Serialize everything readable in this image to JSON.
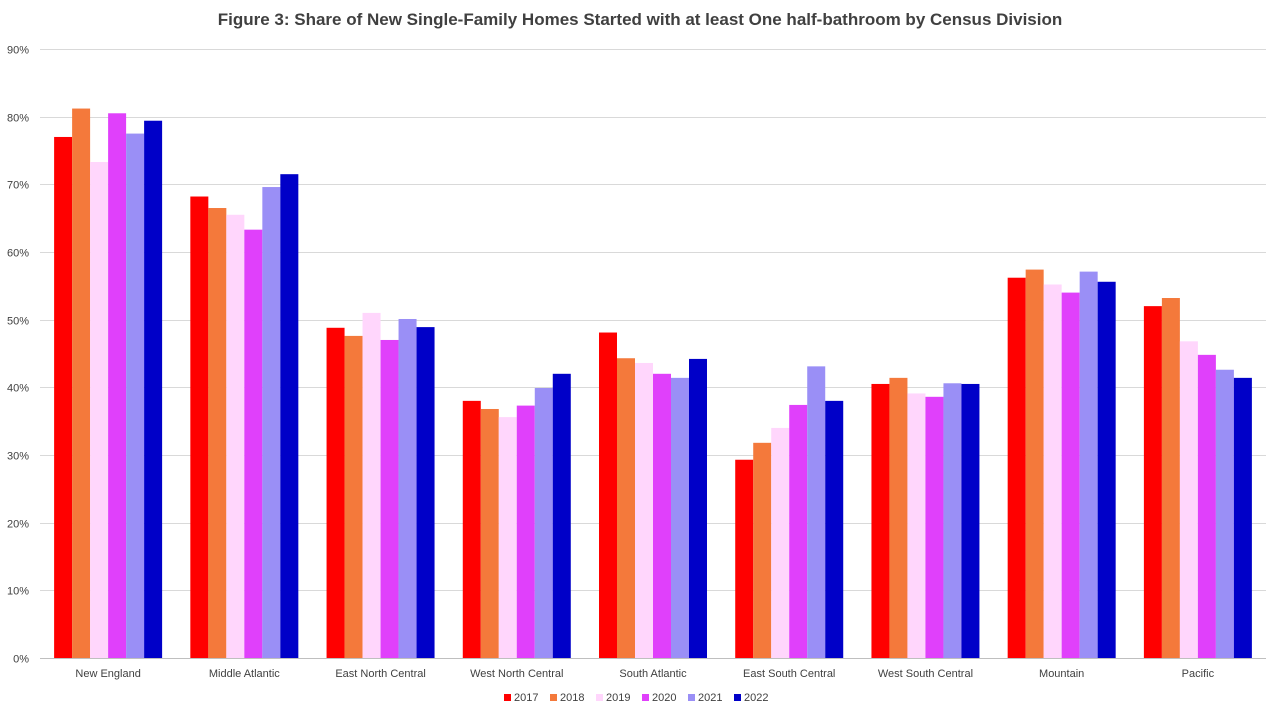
{
  "chart_data": {
    "type": "bar",
    "title": "Figure 3: Share of New Single-Family Homes Started with at least One half-bathroom by Census Division",
    "xlabel": "",
    "ylabel": "",
    "ylim": [
      0,
      90
    ],
    "ytick_step": 10,
    "ytick_suffix": "%",
    "grid": true,
    "legend_position": "bottom",
    "categories": [
      "New England",
      "Middle Atlantic",
      "East North Central",
      "West North Central",
      "South Atlantic",
      "East South Central",
      "West South Central",
      "Mountain",
      "Pacific"
    ],
    "series": [
      {
        "name": "2017",
        "color": "#ff0000",
        "values": [
          77.0,
          68.2,
          48.8,
          38.0,
          48.1,
          29.3,
          40.5,
          56.2,
          52.0
        ]
      },
      {
        "name": "2018",
        "color": "#f4793b",
        "values": [
          81.2,
          66.5,
          47.6,
          36.8,
          44.3,
          31.8,
          41.4,
          57.4,
          53.2
        ]
      },
      {
        "name": "2019",
        "color": "#ffd6fc",
        "values": [
          73.3,
          65.5,
          51.0,
          35.6,
          43.6,
          34.0,
          39.1,
          55.2,
          46.8
        ]
      },
      {
        "name": "2020",
        "color": "#e040fb",
        "values": [
          80.5,
          63.3,
          47.0,
          37.3,
          42.0,
          37.4,
          38.6,
          54.0,
          44.8
        ]
      },
      {
        "name": "2021",
        "color": "#9a8ff6",
        "values": [
          77.5,
          69.6,
          50.1,
          39.9,
          41.4,
          43.1,
          40.6,
          57.1,
          42.6
        ]
      },
      {
        "name": "2022",
        "color": "#0000c8",
        "values": [
          79.4,
          71.5,
          48.9,
          42.0,
          44.2,
          38.0,
          40.5,
          55.6,
          41.4
        ]
      }
    ]
  }
}
